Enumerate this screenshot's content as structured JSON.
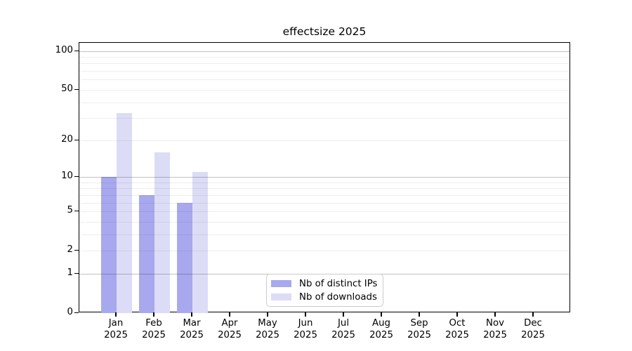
{
  "chart_data": {
    "type": "bar",
    "title": "effectsize 2025",
    "x_categories": [
      "Jan",
      "Feb",
      "Mar",
      "Apr",
      "May",
      "Jun",
      "Jul",
      "Aug",
      "Sep",
      "Oct",
      "Nov",
      "Dec"
    ],
    "x_year_label": "2025",
    "series": [
      {
        "name": "Nb of distinct IPs",
        "color": "#a8a8ee",
        "values": [
          10,
          7,
          6,
          0,
          0,
          0,
          0,
          0,
          0,
          0,
          0,
          0
        ]
      },
      {
        "name": "Nb of downloads",
        "color": "#dcdcf6",
        "values": [
          33,
          16,
          11,
          0,
          0,
          0,
          0,
          0,
          0,
          0,
          0,
          0
        ]
      }
    ],
    "y_ticks": [
      100,
      50,
      20,
      10,
      5,
      2,
      1,
      0
    ],
    "y_scale": "log10(1+value)",
    "ylim": [
      0,
      115
    ],
    "grid": true,
    "legend_position": "lower center"
  }
}
